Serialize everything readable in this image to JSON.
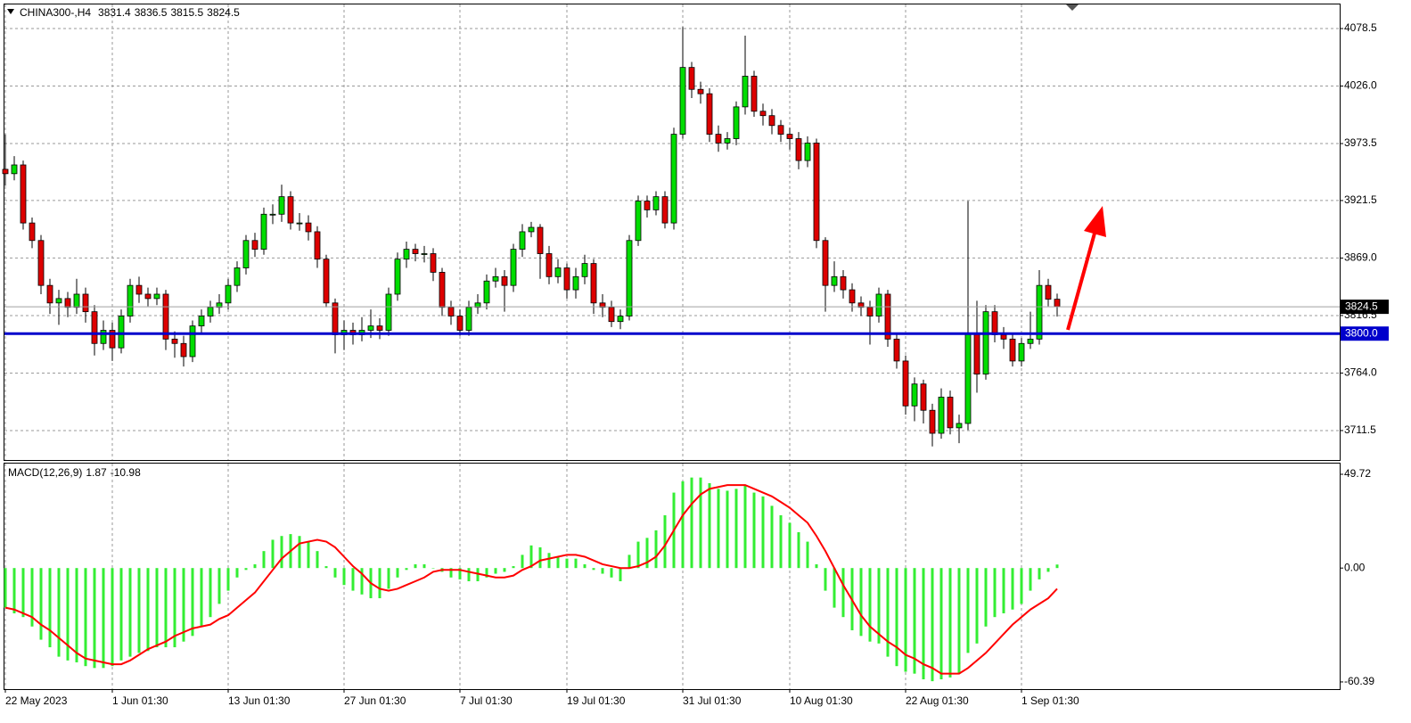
{
  "chart_data": [
    {
      "type": "candlestick",
      "title": "CHINA300-,H4",
      "up_color": "#00dd00",
      "down_color": "#dd0000",
      "grid": true,
      "open": [
        3950,
        3946,
        3954,
        3901,
        3885,
        3844,
        3828,
        3832,
        3824,
        3836,
        3820,
        3791,
        3803,
        3787,
        3816,
        3844,
        3836,
        3832,
        3836,
        3795,
        3791,
        3779,
        3807,
        3816,
        3824,
        3828,
        3844,
        3860,
        3885,
        3877,
        3909,
        3909,
        3925,
        3901,
        3901,
        3893,
        3868,
        3828,
        3799,
        3803,
        3799,
        3803,
        3807,
        3803,
        3836,
        3868,
        3877,
        3873,
        3873,
        3856,
        3824,
        3816,
        3803,
        3824,
        3828,
        3848,
        3852,
        3844,
        3877,
        3893,
        3897,
        3873,
        3852,
        3860,
        3840,
        3852,
        3864,
        3828,
        3824,
        3811,
        3816,
        3885,
        3921,
        3913,
        3925,
        3901,
        3982,
        4043,
        4023,
        4019,
        3982,
        3974,
        3978,
        4007,
        4035,
        4003,
        3999,
        3990,
        3982,
        3978,
        3958,
        3974,
        3885,
        3844,
        3852,
        3840,
        3828,
        3824,
        3816,
        3836,
        3795,
        3775,
        3734,
        3754,
        3730,
        3709,
        3742,
        3714,
        3718,
        3800,
        3763,
        3820,
        3799,
        3795,
        3775,
        3791,
        3795,
        3844,
        3831.4
      ],
      "high": [
        3982,
        3962,
        3958,
        3906,
        3890,
        3850,
        3840,
        3838,
        3850,
        3842,
        3826,
        3812,
        3810,
        3822,
        3850,
        3852,
        3842,
        3842,
        3840,
        3802,
        3798,
        3812,
        3822,
        3830,
        3836,
        3850,
        3866,
        3890,
        3892,
        3915,
        3918,
        3936,
        3930,
        3910,
        3908,
        3898,
        3872,
        3832,
        3812,
        3810,
        3815,
        3822,
        3814,
        3842,
        3874,
        3884,
        3882,
        3880,
        3878,
        3860,
        3830,
        3822,
        3830,
        3836,
        3854,
        3860,
        3858,
        3882,
        3900,
        3902,
        3900,
        3880,
        3868,
        3864,
        3860,
        3872,
        3868,
        3836,
        3830,
        3822,
        3890,
        3926,
        3926,
        3930,
        3930,
        3988,
        4080,
        4048,
        4030,
        4024,
        3990,
        3984,
        4012,
        4072,
        4040,
        4010,
        4005,
        3995,
        3988,
        3984,
        3980,
        3978,
        3888,
        3866,
        3858,
        3846,
        3834,
        3830,
        3842,
        3840,
        3800,
        3780,
        3760,
        3758,
        3736,
        3750,
        3748,
        3726,
        3921,
        3830,
        3826,
        3826,
        3806,
        3800,
        3796,
        3820,
        3858,
        3850,
        3836.5
      ],
      "low": [
        3935,
        3940,
        3895,
        3878,
        3836,
        3818,
        3808,
        3815,
        3818,
        3810,
        3780,
        3785,
        3775,
        3782,
        3810,
        3828,
        3825,
        3826,
        3785,
        3778,
        3770,
        3774,
        3800,
        3810,
        3818,
        3822,
        3838,
        3854,
        3870,
        3872,
        3900,
        3902,
        3895,
        3894,
        3885,
        3860,
        3824,
        3782,
        3785,
        3790,
        3793,
        3796,
        3795,
        3798,
        3830,
        3860,
        3866,
        3865,
        3848,
        3816,
        3808,
        3798,
        3798,
        3818,
        3822,
        3842,
        3820,
        3838,
        3870,
        3888,
        3850,
        3845,
        3846,
        3832,
        3832,
        3845,
        3818,
        3815,
        3806,
        3804,
        3812,
        3880,
        3906,
        3908,
        3896,
        3895,
        3978,
        4015,
        4010,
        3975,
        3966,
        3968,
        3972,
        4000,
        3998,
        3990,
        3982,
        3975,
        3968,
        3950,
        3952,
        3878,
        3820,
        3838,
        3832,
        3820,
        3816,
        3790,
        3810,
        3788,
        3768,
        3726,
        3720,
        3718,
        3697,
        3704,
        3708,
        3700,
        3712,
        3746,
        3758,
        3792,
        3786,
        3770,
        3770,
        3786,
        3790,
        3825,
        3815.5
      ],
      "close": [
        3946,
        3954,
        3901,
        3885,
        3844,
        3828,
        3832,
        3824,
        3836,
        3820,
        3791,
        3803,
        3787,
        3816,
        3844,
        3836,
        3832,
        3836,
        3795,
        3791,
        3779,
        3807,
        3816,
        3824,
        3828,
        3844,
        3860,
        3885,
        3877,
        3909,
        3909,
        3925,
        3901,
        3901,
        3893,
        3868,
        3828,
        3799,
        3803,
        3799,
        3803,
        3807,
        3803,
        3836,
        3868,
        3877,
        3873,
        3873,
        3856,
        3824,
        3816,
        3803,
        3824,
        3828,
        3848,
        3852,
        3844,
        3877,
        3893,
        3897,
        3873,
        3852,
        3860,
        3840,
        3852,
        3864,
        3828,
        3824,
        3811,
        3816,
        3885,
        3921,
        3913,
        3925,
        3901,
        3982,
        4043,
        4023,
        4019,
        3982,
        3974,
        3978,
        4007,
        4035,
        4003,
        3999,
        3990,
        3982,
        3978,
        3958,
        3974,
        3885,
        3844,
        3852,
        3840,
        3828,
        3824,
        3816,
        3836,
        3795,
        3775,
        3734,
        3754,
        3730,
        3709,
        3742,
        3714,
        3718,
        3800,
        3763,
        3820,
        3799,
        3795,
        3775,
        3791,
        3795,
        3844,
        3831.4,
        3824.5
      ],
      "xlim": [
        -0.1,
        149.7
      ],
      "xticks": [
        {
          "value": 0,
          "label": "22 May 2023"
        },
        {
          "value": 12,
          "label": "1 Jun 01:30"
        },
        {
          "value": 25,
          "label": "13 Jun 01:30"
        },
        {
          "value": 38,
          "label": "27 Jun 01:30"
        },
        {
          "value": 51,
          "label": "7 Jul 01:30"
        },
        {
          "value": 63,
          "label": "19 Jul 01:30"
        },
        {
          "value": 76,
          "label": "31 Jul 01:30"
        },
        {
          "value": 88,
          "label": "10 Aug 01:30"
        },
        {
          "value": 101,
          "label": "22 Aug 01:30"
        },
        {
          "value": 114,
          "label": "1 Sep 01:30"
        }
      ],
      "ylim": [
        3684.6,
        4100.5
      ],
      "yticks": [
        4078.5,
        {
          "value": 4026,
          "label": "4026.0"
        },
        3973.5,
        3921.5,
        {
          "value": 3869,
          "label": "3869.0"
        },
        3816.5,
        {
          "value": 3764,
          "label": "3764.0"
        },
        3711.5
      ],
      "levels": [
        {
          "value": 3800,
          "label": "3800.0",
          "color": "#0000cc"
        }
      ]
    },
    {
      "type": "macd",
      "title": "MACD(12,26,9)",
      "histogram": {
        "color": "#33ee33",
        "values": [
          -21,
          -24,
          -26,
          -31,
          -38,
          -42,
          -47,
          -49,
          -50,
          -52,
          -53,
          -53,
          -52,
          -49,
          -47,
          -45,
          -44,
          -42,
          -42,
          -42,
          -39,
          -36,
          -31,
          -26,
          -19,
          -12,
          -5,
          -1,
          2,
          9,
          15,
          17,
          18,
          17,
          14,
          9,
          1,
          -5,
          -9,
          -12,
          -14,
          -16,
          -16,
          -11,
          -5,
          -1,
          2,
          2,
          0,
          -2,
          -5,
          -6,
          -7,
          -7,
          -5,
          -3,
          -2,
          1,
          7,
          12,
          11,
          8,
          6,
          5,
          5,
          2,
          -1,
          -3,
          -5,
          -7,
          7,
          14,
          16,
          20,
          28,
          40,
          46,
          48,
          48,
          45,
          42,
          41,
          42,
          44,
          40,
          38,
          33,
          28,
          24,
          19,
          14,
          2,
          -12,
          -21,
          -26,
          -33,
          -36,
          -39,
          -40,
          -47,
          -52,
          -55,
          -56,
          -59,
          -60,
          -59,
          -58,
          -56,
          -45,
          -40,
          -31,
          -26,
          -24,
          -22,
          -19,
          -12,
          -6,
          -2,
          1.87
        ]
      },
      "signal": {
        "color": "#ff0000",
        "values": [
          -21,
          -22,
          -24,
          -26,
          -30,
          -33,
          -37,
          -41,
          -45,
          -48,
          -49,
          -50,
          -51,
          -51,
          -49,
          -46,
          -43,
          -41,
          -39,
          -36,
          -34,
          -32,
          -31,
          -30,
          -27,
          -25,
          -21,
          -17,
          -13,
          -7,
          -1,
          5,
          9,
          13,
          14,
          15,
          14,
          11,
          6,
          1,
          -3,
          -8,
          -11,
          -12,
          -11,
          -9,
          -7,
          -5,
          -2,
          -1,
          -1,
          -1,
          -2,
          -3,
          -4,
          -5,
          -5,
          -4,
          -1,
          1,
          4,
          5,
          6,
          7,
          7,
          6,
          4,
          2,
          1,
          0,
          0,
          1,
          3,
          6,
          12,
          20,
          28,
          34,
          39,
          42,
          43,
          44,
          44,
          44,
          42,
          40,
          38,
          35,
          32,
          28,
          24,
          17,
          9,
          0,
          -9,
          -17,
          -25,
          -31,
          -35,
          -39,
          -42,
          -46,
          -48,
          -51,
          -53,
          -56,
          -56,
          -56,
          -53,
          -49,
          -45,
          -40,
          -35,
          -30,
          -26,
          -22,
          -19,
          -16,
          -10.98
        ]
      },
      "ylim": [
        -64.2,
        55.4
      ],
      "yticks": [
        49.72,
        {
          "value": 0,
          "label": "0.00"
        },
        -60.39
      ]
    }
  ]
}
